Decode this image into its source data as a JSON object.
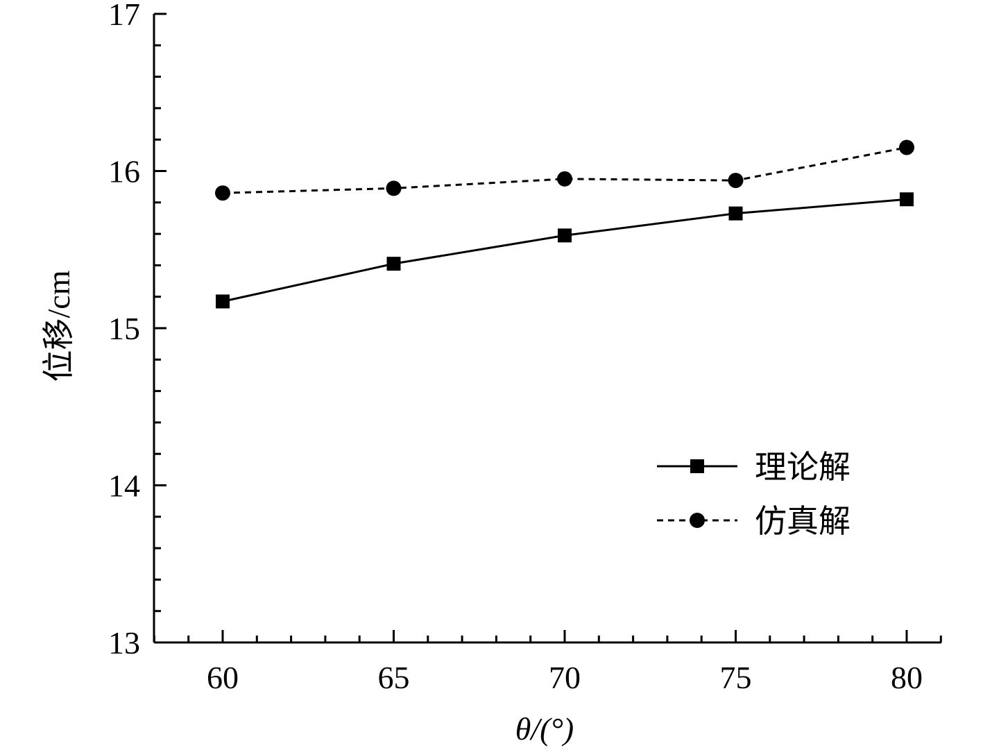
{
  "chart_data": {
    "type": "line",
    "title": "",
    "xlabel": "θ/(°)",
    "ylabel": "位移/cm",
    "x": [
      60,
      65,
      70,
      75,
      80
    ],
    "xlim": [
      58,
      81
    ],
    "ylim": [
      13,
      17
    ],
    "xticks": [
      60,
      65,
      70,
      75,
      80
    ],
    "yticks": [
      13,
      14,
      15,
      16,
      17
    ],
    "grid": false,
    "legend_position": "bottom-right",
    "series": [
      {
        "name": "理论解",
        "values": [
          15.17,
          15.41,
          15.59,
          15.73,
          15.82
        ],
        "marker": "square",
        "line": "solid",
        "color": "#000000"
      },
      {
        "name": "仿真解",
        "values": [
          15.86,
          15.89,
          15.95,
          15.94,
          16.15
        ],
        "marker": "circle",
        "line": "dashed",
        "color": "#000000"
      }
    ]
  }
}
